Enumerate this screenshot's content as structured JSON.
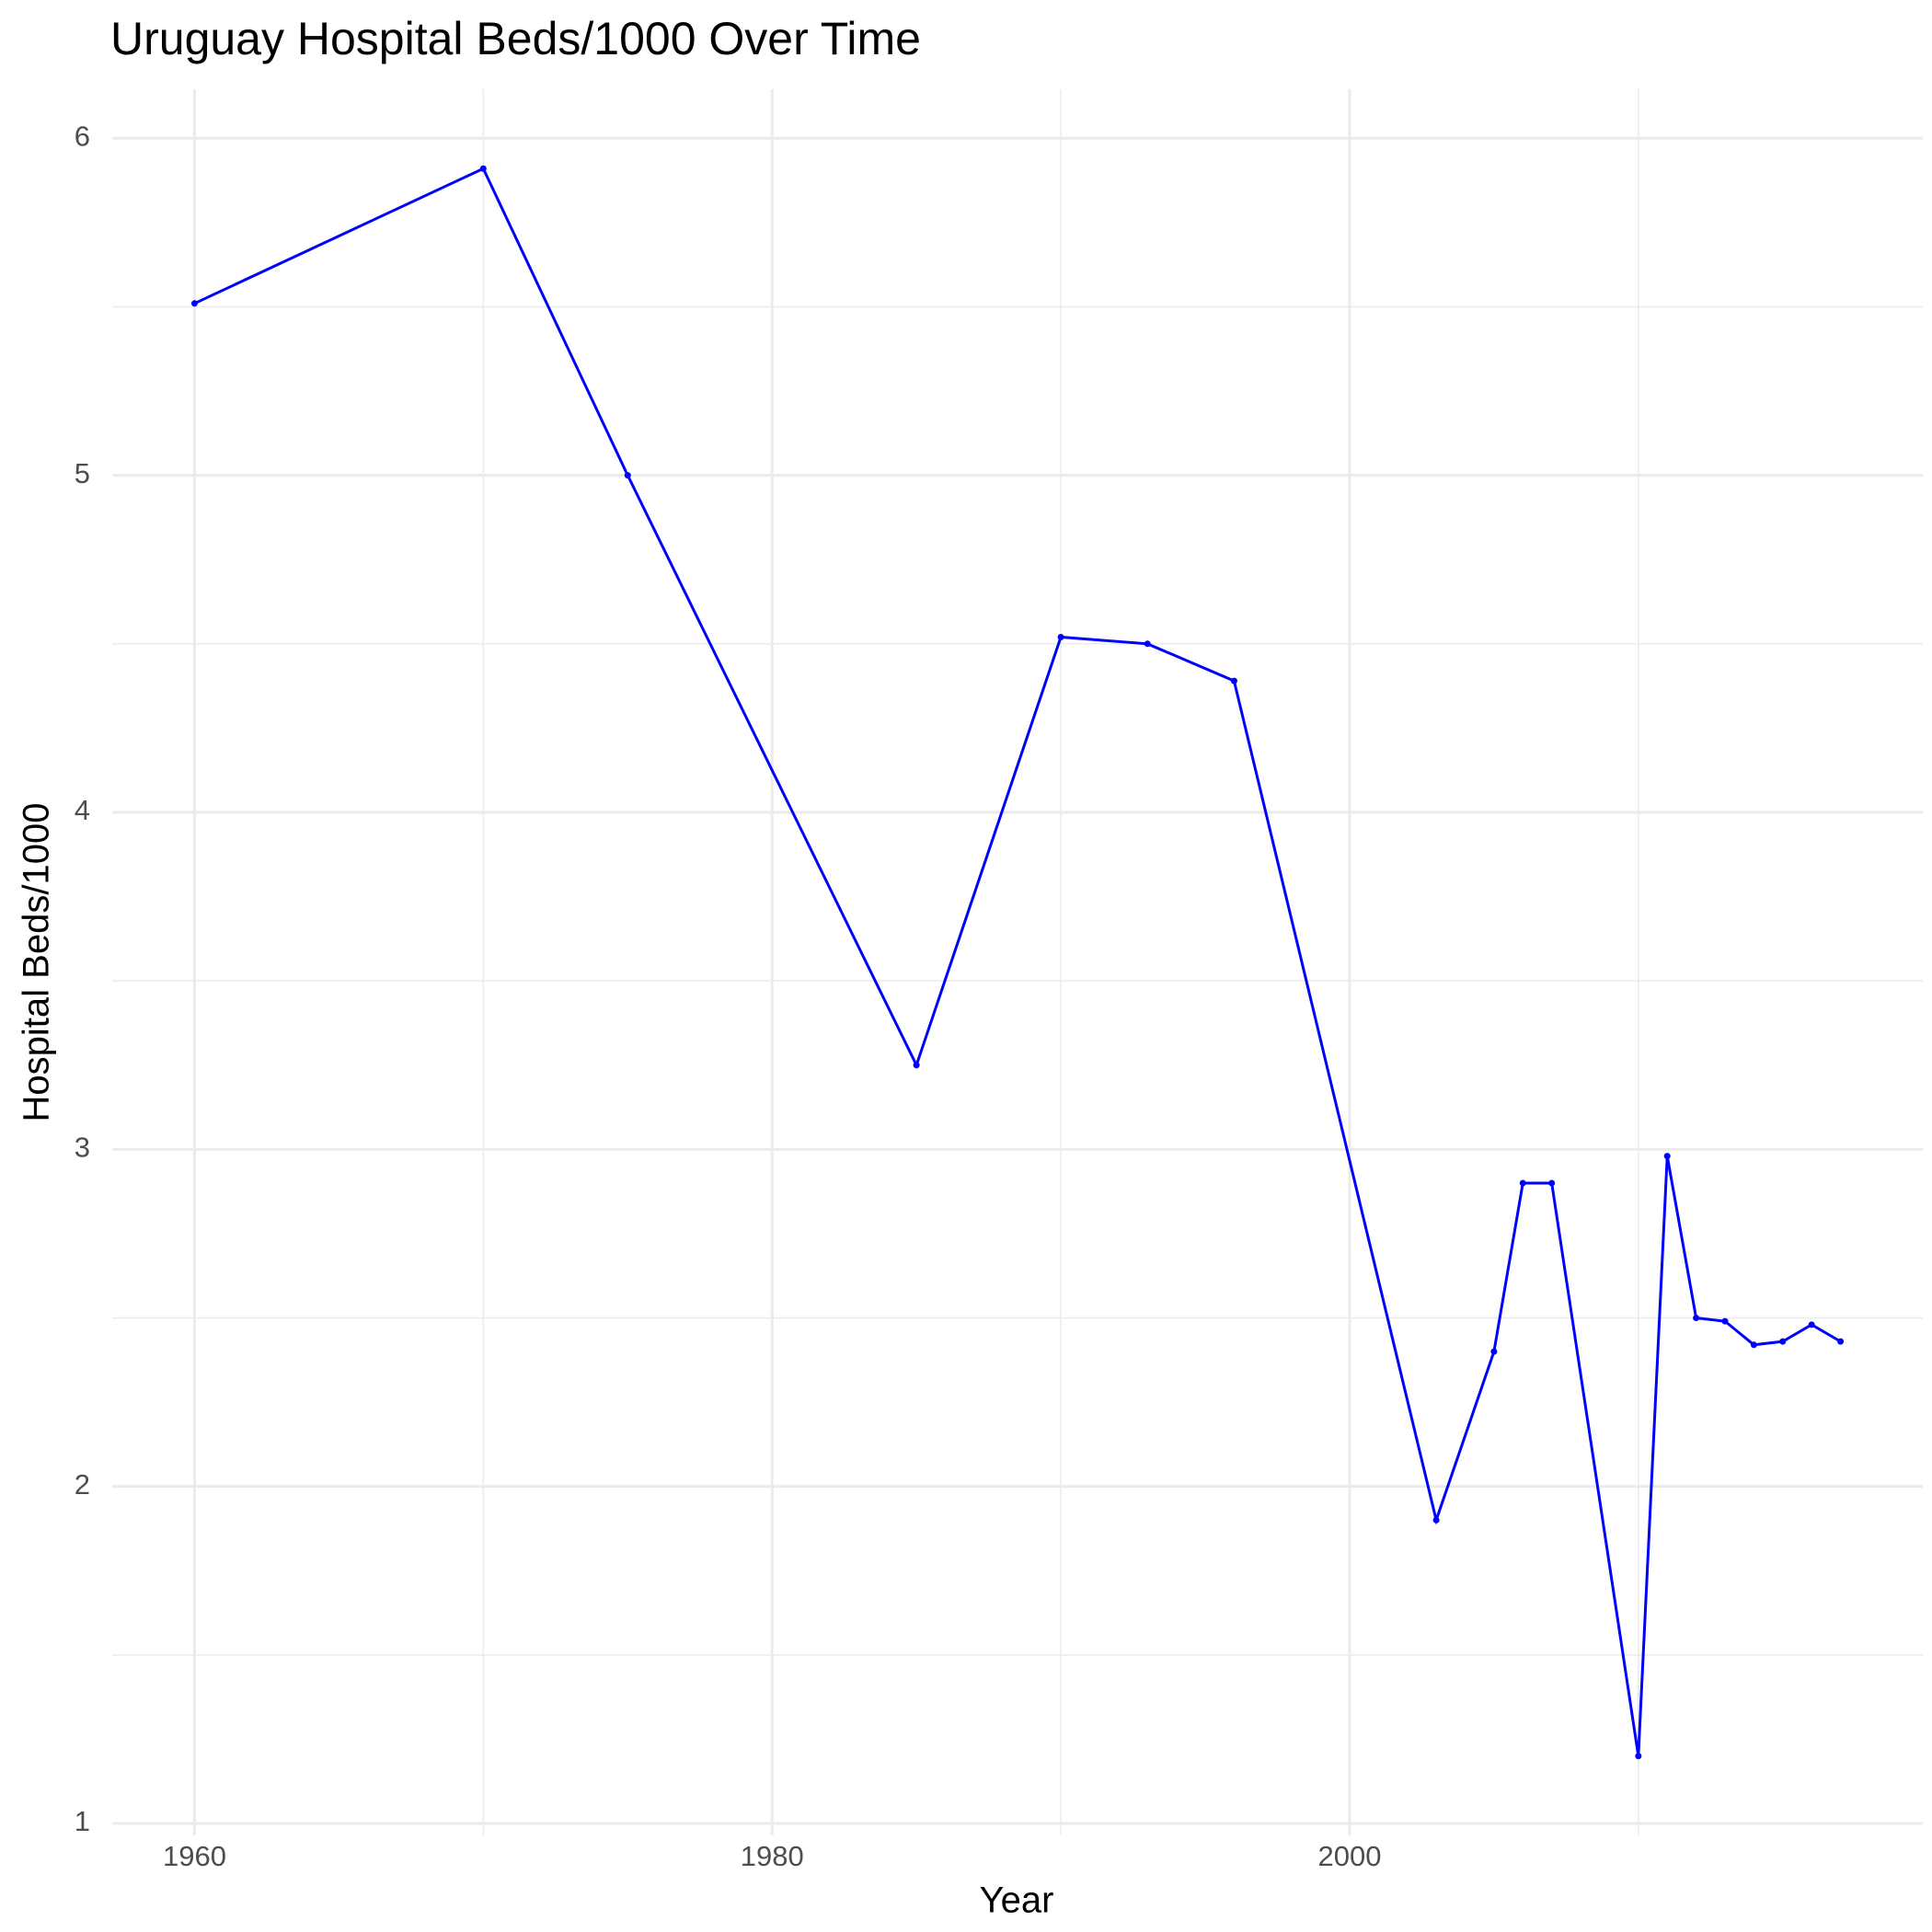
{
  "chart_data": {
    "type": "line",
    "title": "Uruguay Hospital Beds/1000 Over Time",
    "x_label": "Year",
    "y_label": "Hospital Beds/1000",
    "x": [
      1960,
      1970,
      1975,
      1985,
      1990,
      1993,
      1996,
      2003,
      2005,
      2006,
      2007,
      2010,
      2011,
      2012,
      2013,
      2014,
      2015,
      2016,
      2017
    ],
    "series": [
      {
        "name": "Hospital Beds/1000",
        "color": "#0000ff",
        "values": [
          5.51,
          5.91,
          5.0,
          3.25,
          4.52,
          4.5,
          4.39,
          1.9,
          2.4,
          2.9,
          2.9,
          1.2,
          2.98,
          2.5,
          2.49,
          2.42,
          2.43,
          2.48,
          2.43
        ]
      }
    ],
    "xlim": [
      1957.15,
      2019.85
    ],
    "xticks": [
      1960,
      1980,
      2000
    ],
    "minor_xticks": [
      1970,
      1990,
      2010
    ],
    "ylim": [
      0.9645,
      6.1455
    ],
    "yticks": [
      1,
      2,
      3,
      4,
      5,
      6
    ],
    "minor_yticks": [
      1.5,
      2.5,
      3.5,
      4.5,
      5.5
    ],
    "grid": true
  }
}
